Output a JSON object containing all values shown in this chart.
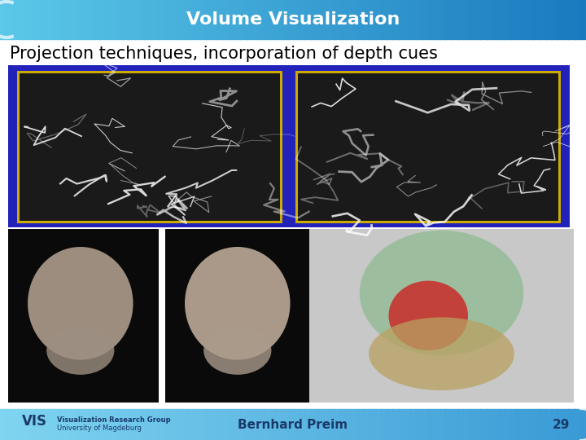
{
  "title": "Volume Visualization",
  "subtitle": "Projection techniques, incorporation of depth cues",
  "footer_author": "Bernhard Preim",
  "footer_page": "29",
  "footer_logo_text1": "Visualization Research Group",
  "footer_logo_text2": "University of Magdeburg",
  "header_bg_color_left": "#5bc8e8",
  "header_bg_color_right": "#1a7abf",
  "header_text_color": "#ffffff",
  "footer_bg_color": "#7fd4f0",
  "slide_bg_color": "#ffffff",
  "subtitle_color": "#000000",
  "outer_border_color": "#2222bb",
  "inner_border_color": "#ccaa00",
  "title_fontsize": 16,
  "subtitle_fontsize": 15,
  "footer_fontsize": 11
}
